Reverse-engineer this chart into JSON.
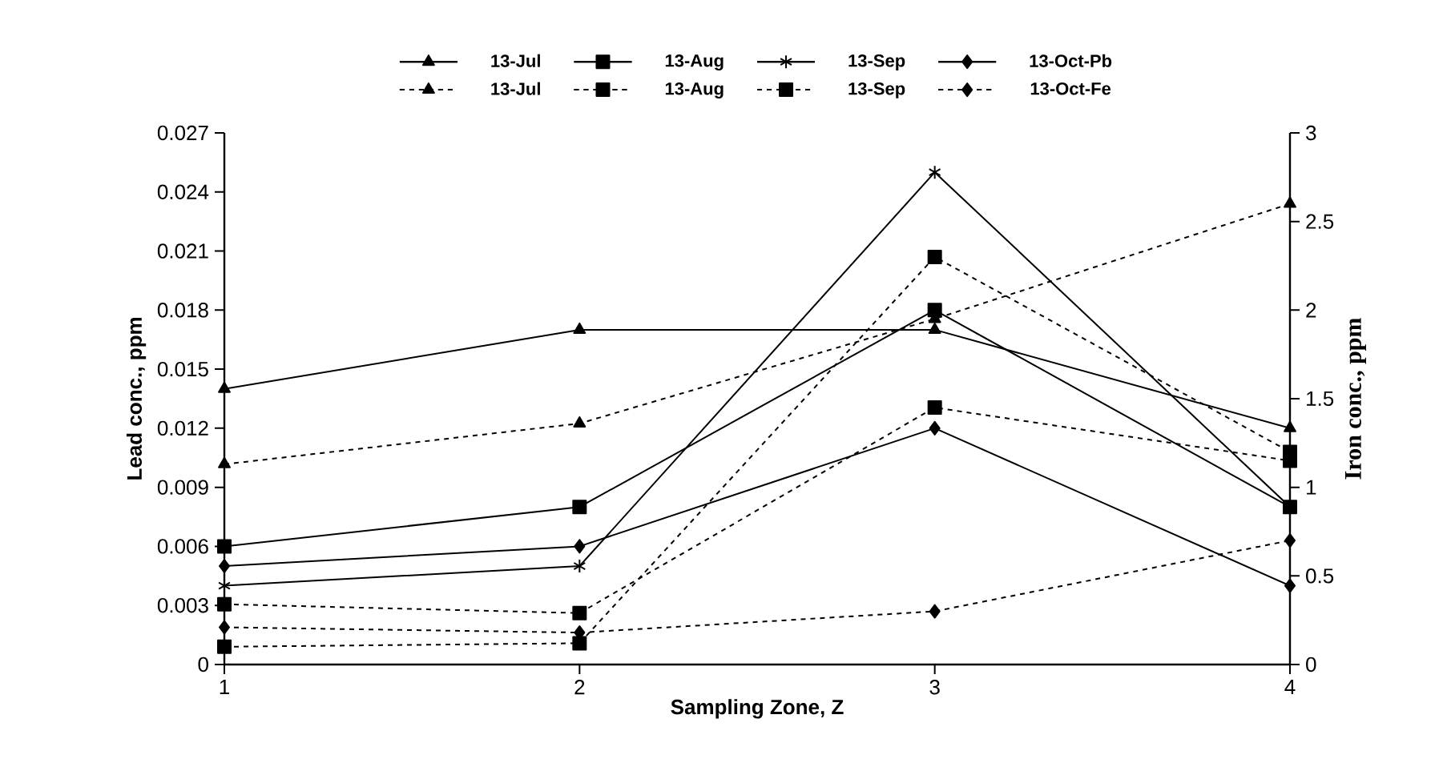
{
  "chart_data": {
    "type": "line",
    "xlabel": "Sampling Zone, Z",
    "ylabel": "Lead conc., ppm",
    "y2label": "Iron conc., ppm",
    "x": [
      1,
      2,
      3,
      4
    ],
    "xlim": [
      1,
      4
    ],
    "xticks": [
      1,
      2,
      3,
      4
    ],
    "ylim": [
      0,
      0.027
    ],
    "yticks": [
      0,
      0.003,
      0.006,
      0.009,
      0.012,
      0.015,
      0.018,
      0.021,
      0.024,
      0.027
    ],
    "y2lim": [
      0,
      3
    ],
    "y2ticks": [
      0,
      0.5,
      1,
      1.5,
      2,
      2.5,
      3
    ],
    "grid": false,
    "legend": "top",
    "series": [
      {
        "name": "13-Jul",
        "color": "#000000",
        "marker": "triangle",
        "line_style": "solid",
        "values": [
          0.014,
          0.017,
          0.017,
          0.012
        ]
      },
      {
        "name": "13-Aug",
        "color": "#000000",
        "marker": "square",
        "line_style": "solid",
        "values": [
          0.006,
          0.008,
          0.018,
          0.008
        ]
      },
      {
        "name": "13-Sep",
        "color": "#000000",
        "marker": "cross",
        "line_style": "solid",
        "values": [
          0.004,
          0.005,
          0.025,
          0.008
        ]
      },
      {
        "name": "13-Oct-Pb",
        "color": "#000000",
        "marker": "diamond",
        "line_style": "solid",
        "values": [
          0.005,
          0.006,
          0.012,
          0.004
        ]
      },
      {
        "name": "13-Jul",
        "color": "#000000",
        "marker": "triangle",
        "line_style": "dashed",
        "axis": "y2",
        "values": [
          1.13,
          1.36,
          1.95,
          2.6
        ]
      },
      {
        "name": "13-Aug",
        "color": "#000000",
        "marker": "square",
        "line_style": "dashed",
        "axis": "y2",
        "values": [
          0.34,
          0.29,
          1.45,
          1.15
        ]
      },
      {
        "name": "13-Sep",
        "color": "#000000",
        "marker": "square",
        "line_style": "dashed",
        "axis": "y2",
        "values": [
          0.1,
          0.12,
          2.3,
          1.2
        ]
      },
      {
        "name": "13-Oct-Fe",
        "color": "#000000",
        "marker": "diamond",
        "line_style": "dashed",
        "axis": "y2",
        "values": [
          0.21,
          0.18,
          0.3,
          0.7
        ]
      }
    ]
  }
}
